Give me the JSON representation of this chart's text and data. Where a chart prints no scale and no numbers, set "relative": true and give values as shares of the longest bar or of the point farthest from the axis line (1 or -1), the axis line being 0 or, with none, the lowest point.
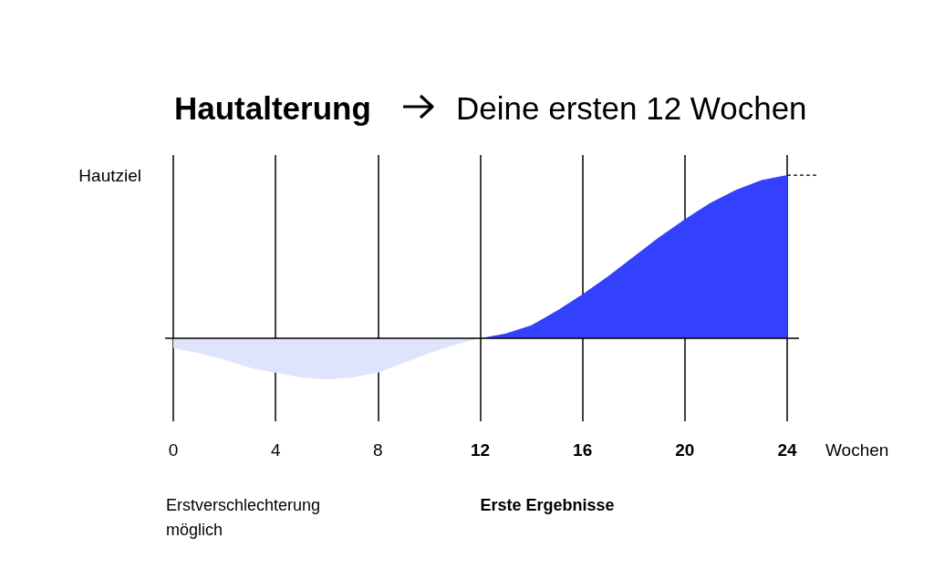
{
  "chart_data": {
    "type": "area",
    "title": "Hautalterung",
    "subtitle": "Deine ersten 12 Wochen",
    "xlabel": "Wochen",
    "relative": true,
    "xlim": [
      0,
      24
    ],
    "xticks": [
      0,
      4,
      8,
      12,
      16,
      20,
      24
    ],
    "grid": "x",
    "marker": "none",
    "series": [
      {
        "color": "#dde4fb",
        "x": [
          0,
          1,
          2,
          3,
          4,
          5,
          6,
          7,
          8,
          9,
          10,
          11,
          12
        ],
        "values": [
          -0.06,
          -0.09,
          -0.13,
          -0.18,
          -0.21,
          -0.24,
          -0.25,
          -0.24,
          -0.21,
          -0.15,
          -0.09,
          -0.04,
          0
        ]
      },
      {
        "color": "#3341ff",
        "x": [
          12,
          13,
          14,
          15,
          16,
          17,
          18,
          19,
          20,
          21,
          22,
          23,
          24
        ],
        "values": [
          0,
          0.03,
          0.08,
          0.17,
          0.27,
          0.38,
          0.5,
          0.62,
          0.73,
          0.83,
          0.91,
          0.97,
          1
        ]
      }
    ],
    "annotations": [
      "Hautziel",
      "Erstverschlechterung möglich",
      "Erste Ergebnisse"
    ]
  }
}
